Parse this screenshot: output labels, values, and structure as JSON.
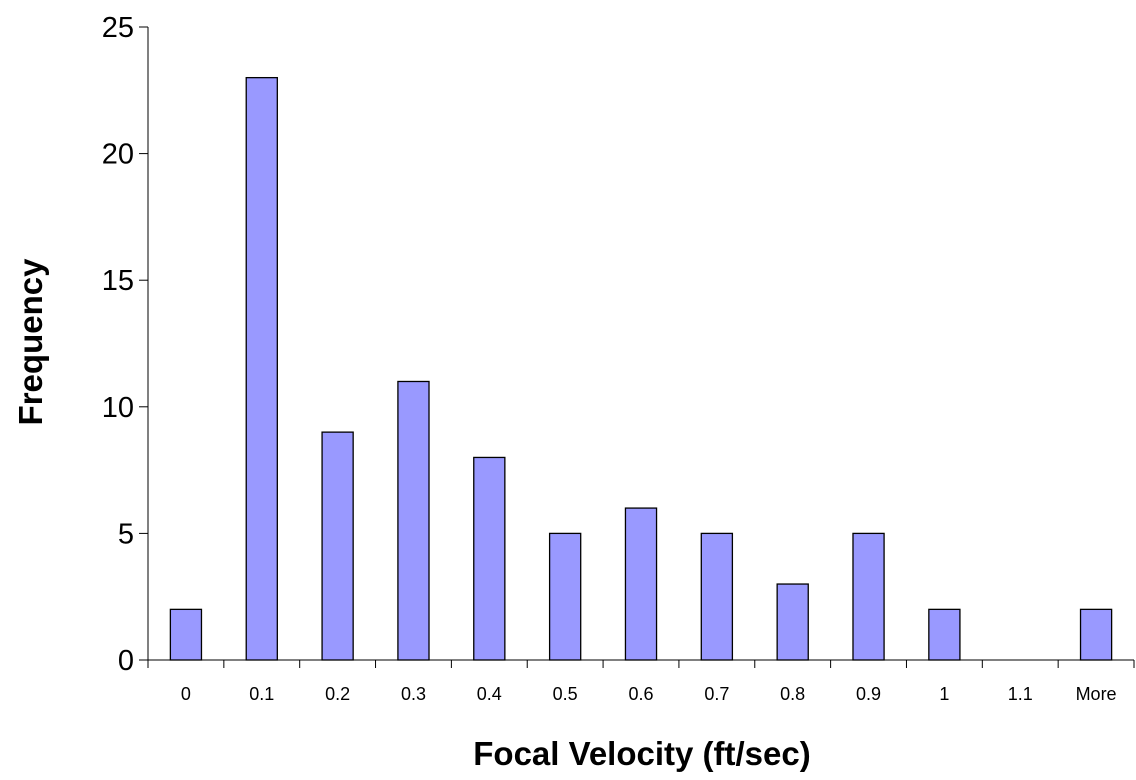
{
  "chart_data": {
    "type": "bar",
    "title": "",
    "xlabel": "Focal Velocity (ft/sec)",
    "ylabel": "Frequency",
    "categories": [
      "0",
      "0.1",
      "0.2",
      "0.3",
      "0.4",
      "0.5",
      "0.6",
      "0.7",
      "0.8",
      "0.9",
      "1",
      "1.1",
      "More"
    ],
    "values": [
      2,
      23,
      9,
      11,
      8,
      5,
      6,
      5,
      3,
      5,
      2,
      0,
      2
    ],
    "ylim": [
      0,
      25
    ],
    "yticks": [
      0,
      5,
      10,
      15,
      20,
      25
    ],
    "grid": false,
    "legend": "none",
    "colors": {
      "bar_fill": "#9999ff",
      "bar_stroke": "#000000",
      "axis": "#000000"
    }
  }
}
